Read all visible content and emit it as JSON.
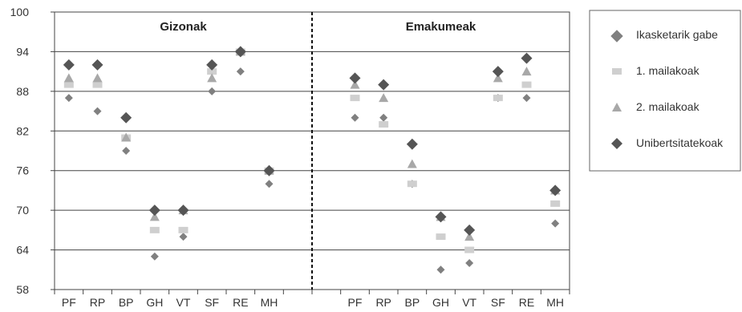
{
  "chart_data": {
    "type": "scatter",
    "categories": [
      "PF",
      "RP",
      "BP",
      "GH",
      "VT",
      "SF",
      "RE",
      "MH"
    ],
    "panels": [
      "Gizonak",
      "Emakumeak"
    ],
    "ylim": [
      58,
      100
    ],
    "yticks": [
      58,
      64,
      70,
      76,
      82,
      88,
      94,
      100
    ],
    "grid": true,
    "legend_position": "right",
    "series": [
      {
        "name": "Ikasketarik gabe",
        "marker": "diamond-small",
        "color": "#808080",
        "values": {
          "Gizonak": [
            87,
            85,
            79,
            63,
            66,
            88,
            91,
            74
          ],
          "Emakumeak": [
            84,
            84,
            74,
            61,
            62,
            87,
            87,
            68
          ]
        }
      },
      {
        "name": "1. mailakoak",
        "marker": "square",
        "color": "#cfcfcf",
        "values": {
          "Gizonak": [
            89,
            89,
            81,
            67,
            67,
            91,
            94,
            76
          ],
          "Emakumeak": [
            87,
            83,
            74,
            66,
            64,
            87,
            89,
            71
          ]
        }
      },
      {
        "name": "2. mailakoak",
        "marker": "triangle",
        "color": "#a8a8a8",
        "values": {
          "Gizonak": [
            90,
            90,
            81,
            69,
            70,
            90,
            94,
            76
          ],
          "Emakumeak": [
            89,
            87,
            77,
            69,
            66,
            90,
            91,
            73
          ]
        }
      },
      {
        "name": "Unibertsitatekoak",
        "marker": "diamond",
        "color": "#555555",
        "values": {
          "Gizonak": [
            92,
            92,
            84,
            70,
            70,
            92,
            94,
            76
          ],
          "Emakumeak": [
            90,
            89,
            80,
            69,
            67,
            91,
            93,
            73
          ]
        }
      }
    ]
  }
}
